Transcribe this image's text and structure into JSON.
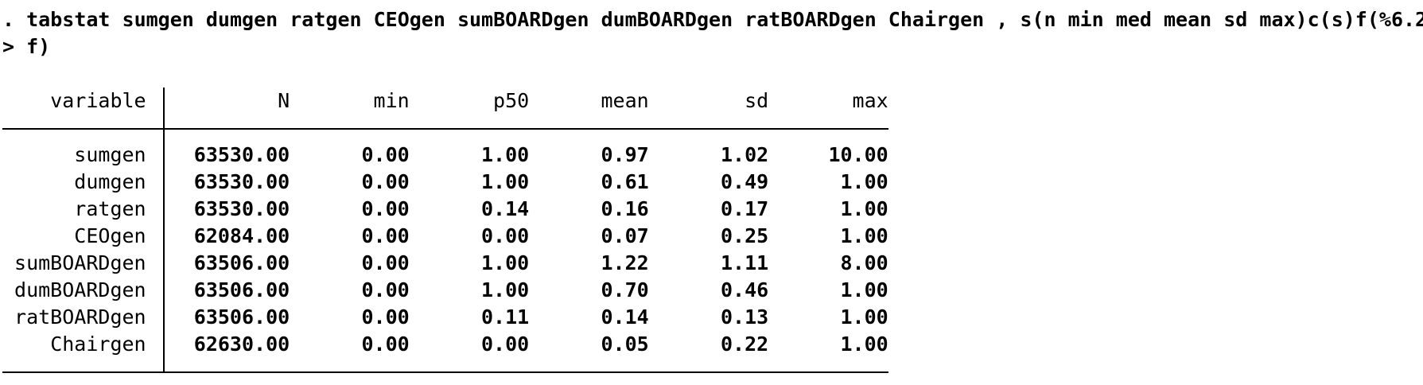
{
  "console": {
    "prompt": ". ",
    "continuation_prompt": "> ",
    "command_line_1": "tabstat sumgen dumgen ratgen CEOgen sumBOARDgen dumBOARDgen ratBOARDgen Chairgen , s(n min med mean sd max)c(s)f(%6.2",
    "command_line_2": "f)"
  },
  "table": {
    "headers": [
      "variable",
      "N",
      "min",
      "p50",
      "mean",
      "sd",
      "max"
    ],
    "rows": [
      {
        "variable": "sumgen",
        "values": [
          "63530.00",
          "0.00",
          "1.00",
          "0.97",
          "1.02",
          "10.00"
        ]
      },
      {
        "variable": "dumgen",
        "values": [
          "63530.00",
          "0.00",
          "1.00",
          "0.61",
          "0.49",
          "1.00"
        ]
      },
      {
        "variable": "ratgen",
        "values": [
          "63530.00",
          "0.00",
          "0.14",
          "0.16",
          "0.17",
          "1.00"
        ]
      },
      {
        "variable": "CEOgen",
        "values": [
          "62084.00",
          "0.00",
          "0.00",
          "0.07",
          "0.25",
          "1.00"
        ]
      },
      {
        "variable": "sumBOARDgen",
        "values": [
          "63506.00",
          "0.00",
          "1.00",
          "1.22",
          "1.11",
          "8.00"
        ]
      },
      {
        "variable": "dumBOARDgen",
        "values": [
          "63506.00",
          "0.00",
          "1.00",
          "0.70",
          "0.46",
          "1.00"
        ]
      },
      {
        "variable": "ratBOARDgen",
        "values": [
          "63506.00",
          "0.00",
          "0.11",
          "0.14",
          "0.13",
          "1.00"
        ]
      },
      {
        "variable": "Chairgen",
        "values": [
          "62630.00",
          "0.00",
          "0.00",
          "0.05",
          "0.22",
          "1.00"
        ]
      }
    ]
  },
  "colors": {
    "text": "#000000",
    "background": "#ffffff",
    "rule": "#000000"
  }
}
